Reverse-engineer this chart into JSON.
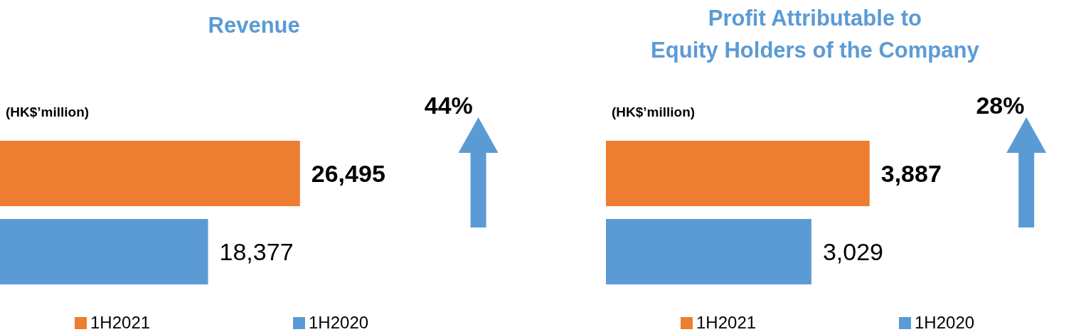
{
  "chart_data": [
    {
      "type": "bar",
      "orientation": "horizontal",
      "title": "Revenue",
      "categories": [
        null
      ],
      "series": [
        {
          "name": "1H2021",
          "color": "#ed7d31",
          "values": [
            26495
          ],
          "value_labels": [
            "26,495"
          ]
        },
        {
          "name": "1H2020",
          "color": "#5b9bd5",
          "values": [
            18377
          ],
          "value_labels": [
            "18,377"
          ]
        }
      ],
      "legend": "bottom",
      "annotations": [
        "(HK$’million)",
        "44%"
      ]
    },
    {
      "type": "bar",
      "orientation": "horizontal",
      "title": "Profit Attributable to\nEquity Holders of the Company",
      "categories": [
        null
      ],
      "series": [
        {
          "name": "1H2021",
          "color": "#ed7d31",
          "values": [
            3887
          ],
          "value_labels": [
            "3,887"
          ]
        },
        {
          "name": "1H2020",
          "color": "#5b9bd5",
          "values": [
            3029
          ],
          "value_labels": [
            "3,029"
          ]
        }
      ],
      "legend": "bottom",
      "annotations": [
        "(HK$’million)",
        "28%"
      ]
    }
  ]
}
